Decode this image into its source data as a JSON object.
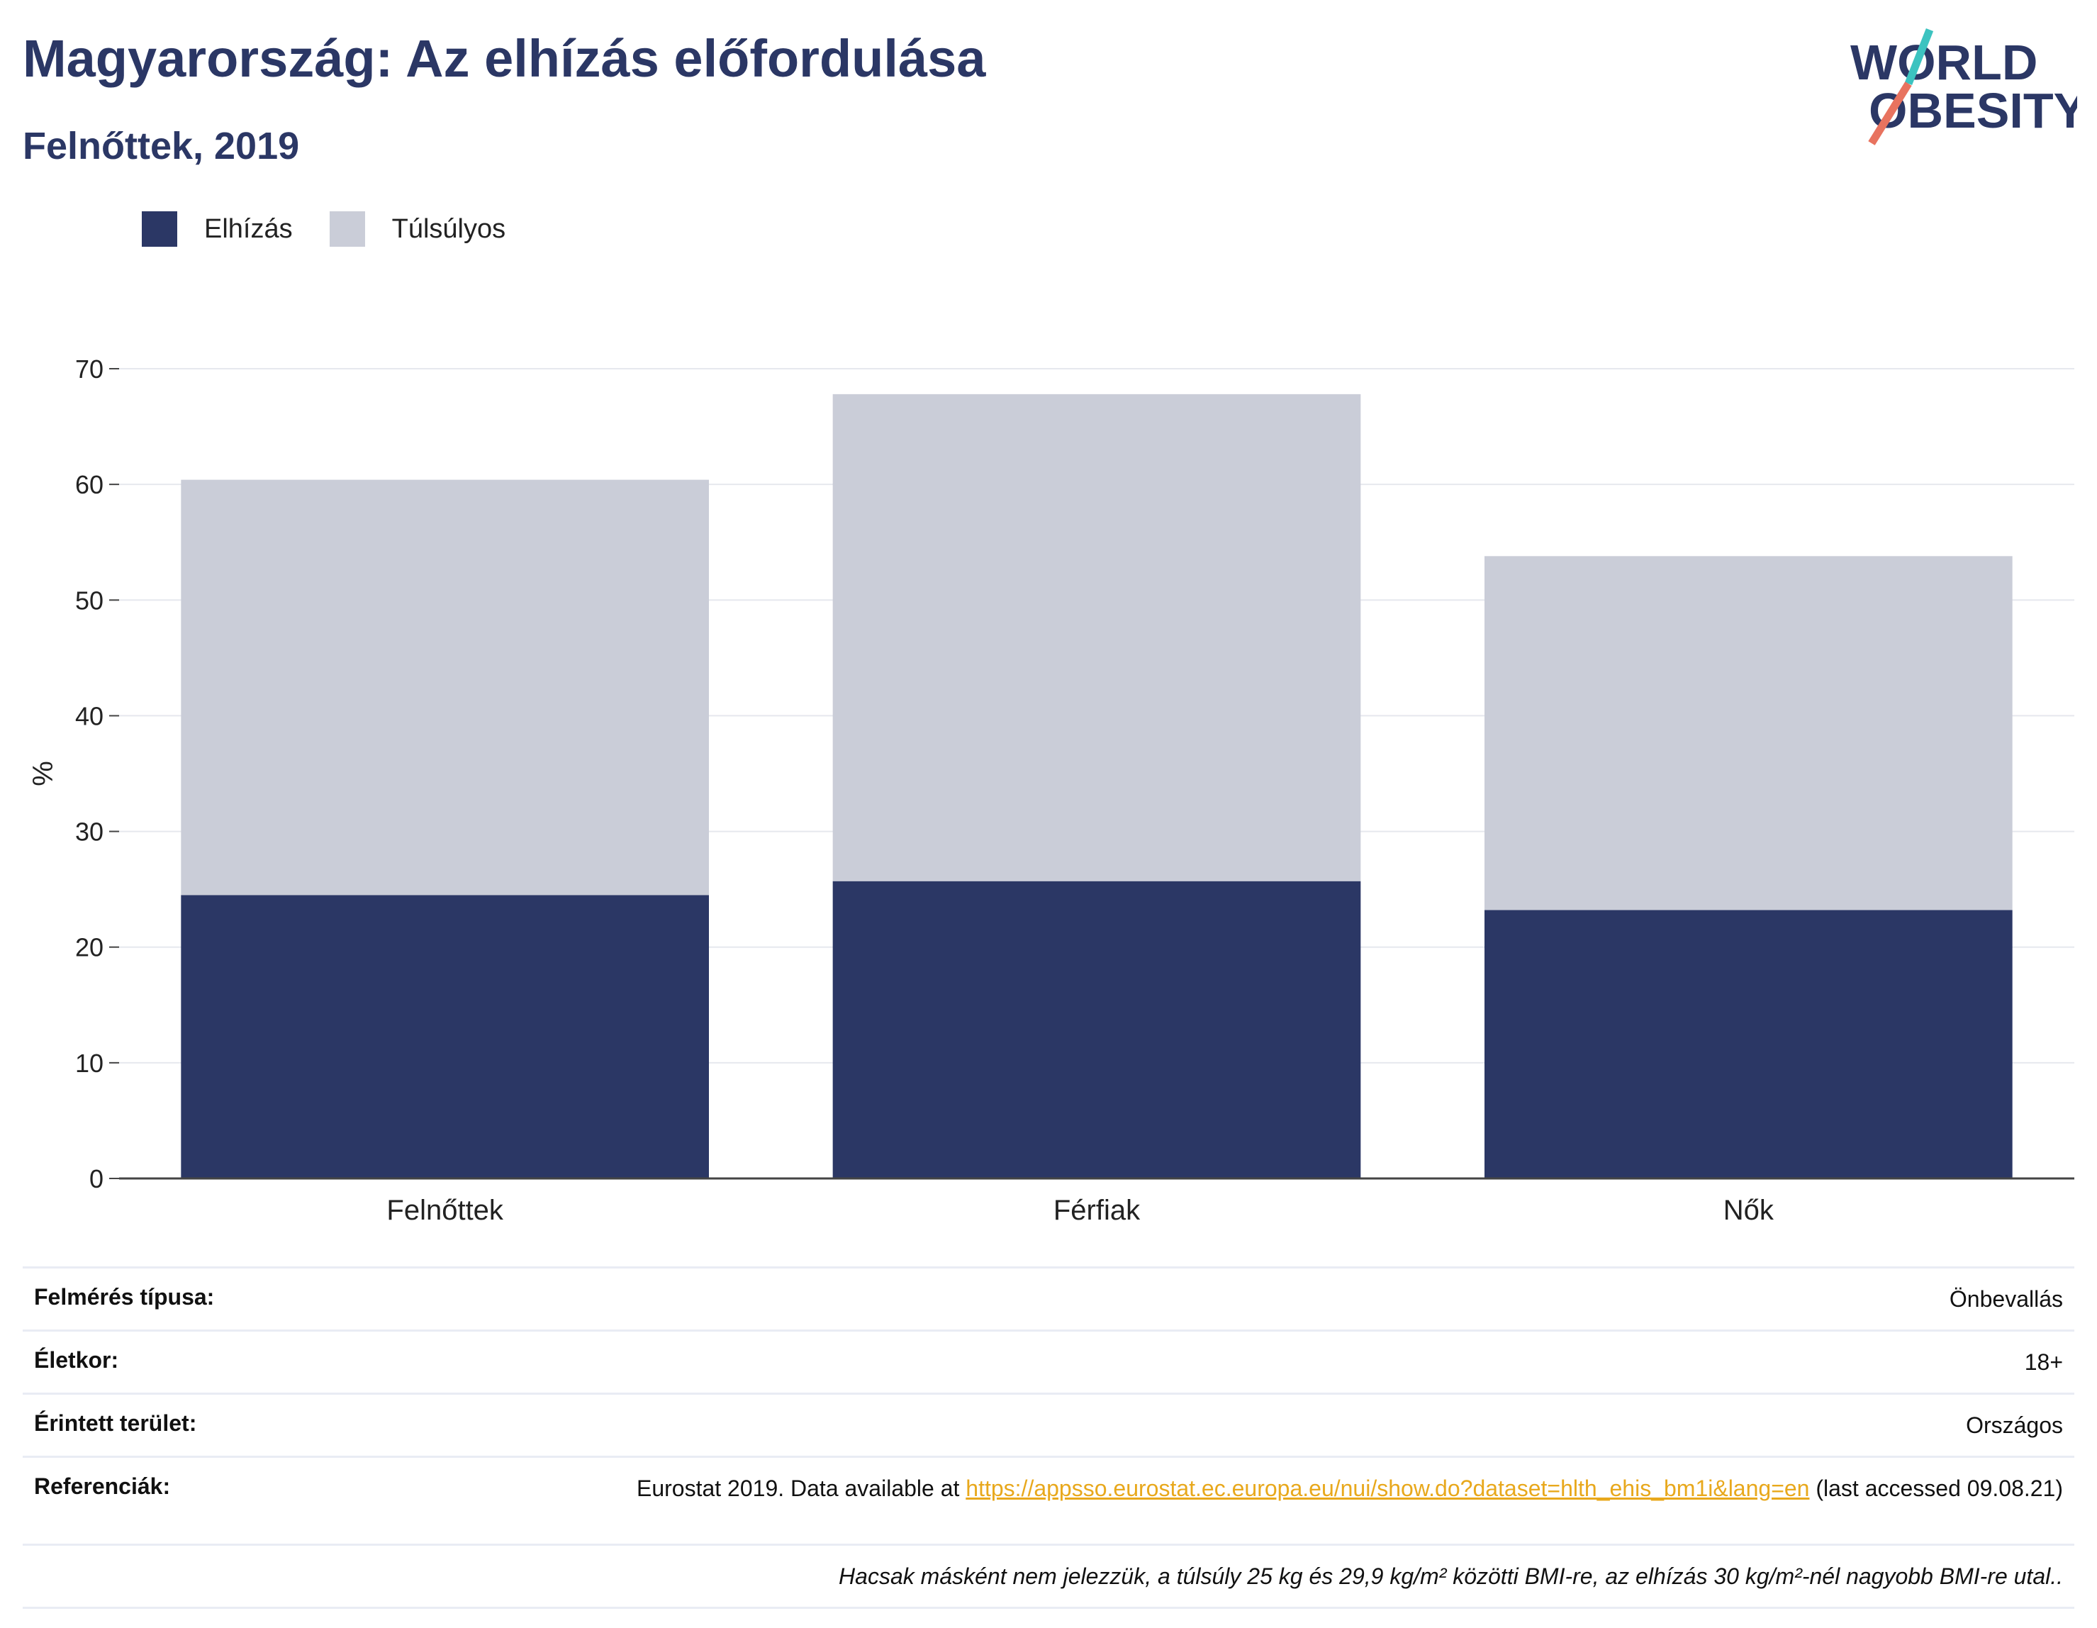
{
  "header": {
    "title": "Magyarország: Az elhízás előfordulása",
    "subtitle": "Felnőttek, 2019"
  },
  "logo": {
    "line1": "WORLD",
    "line2": "OBESITY"
  },
  "colors": {
    "obesity": "#2b3765",
    "overweight": "#cacdd8",
    "title": "#2b3765",
    "link": "#e8a81c",
    "logo_slash_teal": "#3cc3c0",
    "logo_slash_coral": "#e8735f"
  },
  "legend": [
    {
      "label": "Elhízás",
      "color": "#2b3765"
    },
    {
      "label": "Túlsúlyos",
      "color": "#cacdd8"
    }
  ],
  "chart_data": {
    "type": "bar",
    "stacked": true,
    "categories": [
      "Felnőttek",
      "Férfiak",
      "Nők"
    ],
    "series": [
      {
        "name": "Elhízás",
        "values": [
          24.5,
          25.7,
          23.2
        ]
      },
      {
        "name": "Túlsúlyos",
        "values": [
          35.9,
          42.1,
          30.6
        ]
      }
    ],
    "ylabel": "%",
    "ylim": [
      0,
      70
    ],
    "yticks": [
      0,
      10,
      20,
      30,
      40,
      50,
      60,
      70
    ],
    "grid": true,
    "legend_position": "top-left"
  },
  "info": {
    "survey_label": "Felmérés típusa:",
    "survey_value": "Önbevallás",
    "age_label": "Életkor:",
    "age_value": "18+",
    "area_label": "Érintett terület:",
    "area_value": "Országos",
    "ref_label": "Referenciák:",
    "ref_prefix": "Eurostat 2019. Data available at ",
    "ref_link": "https://appsso.eurostat.ec.europa.eu/nui/show.do?dataset=hlth_ehis_bm1i&lang=en",
    "ref_suffix": " (last accessed 09.08.21)",
    "note": "Hacsak másként nem jelezzük, a túlsúly 25 kg és 29,9 kg/m² közötti BMI-re, az elhízás 30 kg/m²-nél nagyobb BMI-re utal.."
  }
}
